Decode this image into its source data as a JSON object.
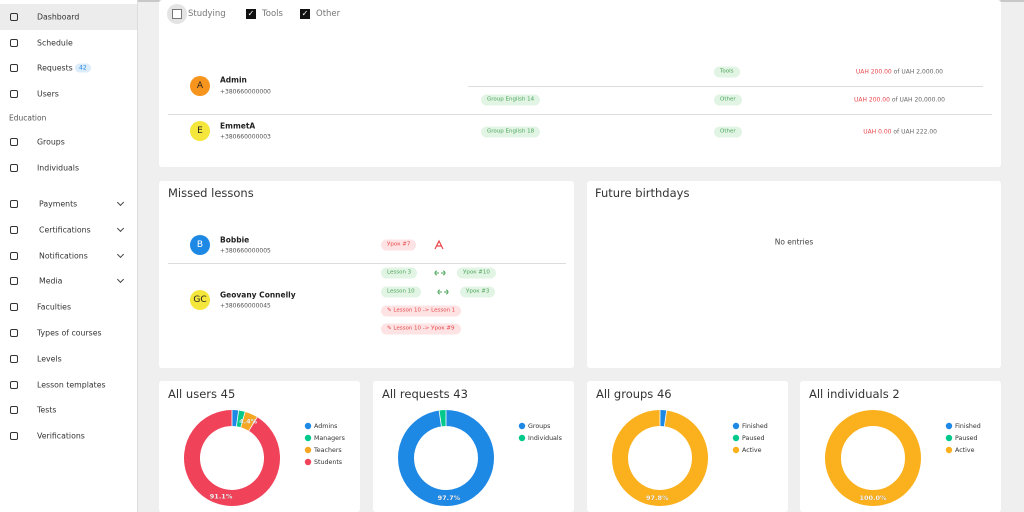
{
  "sidebar": {
    "items": [
      {
        "label": "Dashboard",
        "active": true
      },
      {
        "label": "Schedule"
      },
      {
        "label": "Requests",
        "badge": "42"
      },
      {
        "label": "Users"
      }
    ],
    "section": "Education",
    "section_items": [
      {
        "label": "Groups"
      },
      {
        "label": "Individuals"
      },
      {
        "label": "Payments",
        "expandable": true
      },
      {
        "label": "Certifications",
        "expandable": true
      },
      {
        "label": "Notifications",
        "expandable": true
      },
      {
        "label": "Media",
        "expandable": true
      },
      {
        "label": "Faculties"
      },
      {
        "label": "Types of courses"
      },
      {
        "label": "Levels"
      },
      {
        "label": "Lesson templates"
      },
      {
        "label": "Tests"
      },
      {
        "label": "Verifications"
      }
    ]
  },
  "filters": [
    {
      "label": "Studying",
      "checked": false
    },
    {
      "label": "Tools",
      "checked": true
    },
    {
      "label": "Other",
      "checked": true
    }
  ],
  "accounts": [
    {
      "initials": "A",
      "name": "Admin",
      "phone": "+380660000000",
      "lines": [
        {
          "type": "Tools",
          "paid": "UAH 200.00",
          "total": "of UAH 2,000.00"
        },
        {
          "group": "Group English 14",
          "type": "Other",
          "paid": "UAH 200.00",
          "total": "of UAH 20,000.00"
        }
      ]
    },
    {
      "initials": "E",
      "name": "EmmetA",
      "phone": "+380660000003",
      "lines": [
        {
          "group": "Group English 18",
          "type": "Other",
          "paid": "UAH 0.00",
          "total": "of UAH 222.00"
        }
      ]
    }
  ],
  "missed_lessons": {
    "title": "Missed lessons",
    "students": [
      {
        "initials": "B",
        "name": "Bobbie",
        "phone": "+380660000005",
        "tags": [
          "Урок #7"
        ]
      },
      {
        "initials": "GC",
        "name": "Geovany Connelly",
        "phone": "+380660000045",
        "links": [
          [
            "Lesson 3",
            "Урок #10"
          ],
          [
            "Lesson 10",
            "Урок #3"
          ]
        ],
        "edits": [
          "Lesson 10 -> Lesson 1",
          "Lesson 10 -> Урок #9"
        ]
      }
    ]
  },
  "birthdays": {
    "title": "Future birthdays",
    "empty": "No entries"
  },
  "chart_data": [
    {
      "type": "donut",
      "title": "All users 45",
      "labels": [
        "Admins",
        "Managers",
        "Teachers",
        "Students"
      ],
      "values": [
        2.2,
        2.2,
        4.4,
        91.1
      ],
      "value_labels": [
        null,
        null,
        "4.4%",
        "91.1%"
      ],
      "colors": [
        "#1e88e5",
        "#00c98b",
        "#f5a623",
        "#f0435a"
      ]
    },
    {
      "type": "donut",
      "title": "All requests 43",
      "labels": [
        "Groups",
        "Individuals"
      ],
      "values": [
        97.7,
        2.3
      ],
      "value_labels": [
        "97.7%",
        null
      ],
      "colors": [
        "#1e88e5",
        "#00c98b"
      ]
    },
    {
      "type": "donut",
      "title": "All groups 46",
      "labels": [
        "Finished",
        "Paused",
        "Active"
      ],
      "values": [
        2.2,
        0,
        97.8
      ],
      "value_labels": [
        null,
        null,
        "97.8%"
      ],
      "colors": [
        "#1e88e5",
        "#00c98b",
        "#fbb01e"
      ]
    },
    {
      "type": "donut",
      "title": "All individuals 2",
      "labels": [
        "Finished",
        "Paused",
        "Active"
      ],
      "values": [
        0,
        0,
        100
      ],
      "value_labels": [
        null,
        null,
        "100.0%"
      ],
      "colors": [
        "#1e88e5",
        "#00c98b",
        "#fbb01e"
      ]
    }
  ]
}
